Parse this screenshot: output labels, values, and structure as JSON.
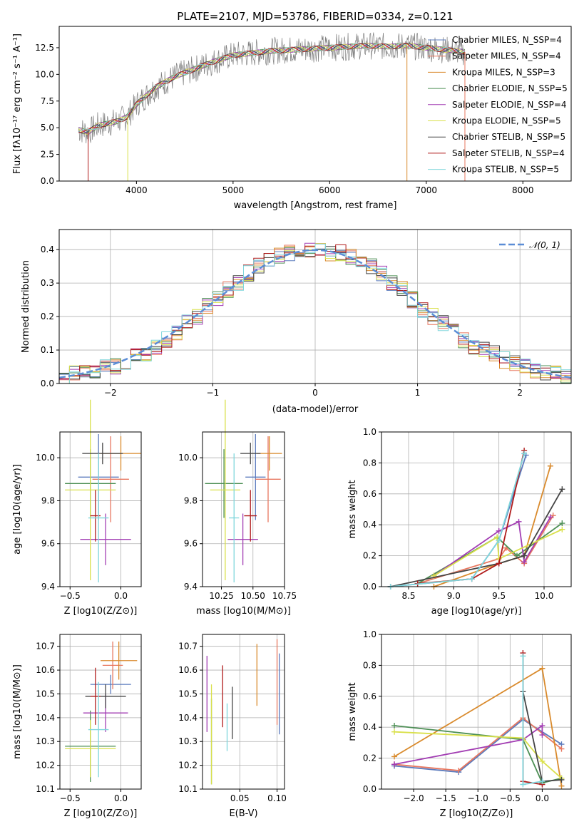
{
  "chart_data": [
    {
      "id": "spectrum",
      "type": "line",
      "title": "PLATE=2107, MJD=53786, FIBERID=0334, z=0.121",
      "xlabel": "wavelength [Angstrom, rest frame]",
      "ylabel": "Flux [fλ10⁻¹⁷ erg cm⁻² s⁻¹ A⁻¹]",
      "xlim": [
        3200,
        8500
      ],
      "ylim": [
        0,
        14.5
      ],
      "xticks": [
        4000,
        5000,
        6000,
        7000,
        8000
      ],
      "yticks": [
        0.0,
        2.5,
        5.0,
        7.5,
        10.0,
        12.5
      ],
      "legend_position": "right",
      "grid": false,
      "data": {
        "x": [
          3400,
          3500,
          3600,
          3700,
          3800,
          3900,
          4000,
          4200,
          4400,
          4600,
          4800,
          5000,
          5200,
          5400,
          5600,
          5800,
          6000,
          6200,
          6400,
          6600,
          6800,
          7000,
          7200,
          7400
        ],
        "y": [
          4.8,
          4.6,
          5.2,
          5.4,
          5.6,
          6.0,
          7.2,
          8.8,
          9.8,
          10.5,
          11.2,
          11.8,
          12.0,
          12.2,
          12.3,
          12.4,
          12.5,
          12.6,
          12.7,
          12.6,
          12.7,
          12.5,
          12.3,
          12.1
        ]
      },
      "series": [
        {
          "name": "Chabrier MILES, N_SSP=4",
          "color": "#5b7bbd"
        },
        {
          "name": "Salpeter MILES, N_SSP=4",
          "color": "#e8775f"
        },
        {
          "name": "Kroupa MILES, N_SSP=3",
          "color": "#d98a2c"
        },
        {
          "name": "Chabrier ELODIE, N_SSP=5",
          "color": "#4d8f55"
        },
        {
          "name": "Salpeter ELODIE, N_SSP=4",
          "color": "#a23db3"
        },
        {
          "name": "Kroupa ELODIE, N_SSP=5",
          "color": "#d9e04a"
        },
        {
          "name": "Chabrier STELIB, N_SSP=5",
          "color": "#444444"
        },
        {
          "name": "Salpeter STELIB, N_SSP=4",
          "color": "#b01c1c"
        },
        {
          "name": "Kroupa STELIB, N_SSP=5",
          "color": "#7fd6dc"
        }
      ]
    },
    {
      "id": "residuals",
      "type": "bar",
      "xlabel": "(data-model)/error",
      "ylabel": "Normed distribution",
      "xlim": [
        -2.5,
        2.5
      ],
      "ylim": [
        0,
        0.46
      ],
      "xticks": [
        -2,
        -1,
        0,
        1,
        2
      ],
      "yticks": [
        0.0,
        0.1,
        0.2,
        0.3,
        0.4
      ],
      "grid": true,
      "legend": "𝒩(0, 1)",
      "legend_position": "top-right",
      "bin_edges": [
        -2.5,
        -2.4,
        -2.3,
        -2.2,
        -2.1,
        -2.0,
        -1.9,
        -1.8,
        -1.7,
        -1.6,
        -1.5,
        -1.4,
        -1.3,
        -1.2,
        -1.1,
        -1.0,
        -0.9,
        -0.8,
        -0.7,
        -0.6,
        -0.5,
        -0.4,
        -0.3,
        -0.2,
        -0.1,
        0.0,
        0.1,
        0.2,
        0.3,
        0.4,
        0.5,
        0.6,
        0.7,
        0.8,
        0.9,
        1.0,
        1.1,
        1.2,
        1.3,
        1.4,
        1.5,
        1.6,
        1.7,
        1.8,
        1.9,
        2.0,
        2.1,
        2.2,
        2.3,
        2.4,
        2.5
      ],
      "values": [
        0.02,
        0.03,
        0.03,
        0.04,
        0.05,
        0.05,
        0.06,
        0.08,
        0.09,
        0.11,
        0.13,
        0.15,
        0.18,
        0.2,
        0.23,
        0.25,
        0.28,
        0.3,
        0.33,
        0.35,
        0.37,
        0.38,
        0.39,
        0.4,
        0.4,
        0.4,
        0.39,
        0.39,
        0.38,
        0.36,
        0.35,
        0.33,
        0.3,
        0.28,
        0.25,
        0.22,
        0.2,
        0.18,
        0.16,
        0.13,
        0.11,
        0.1,
        0.09,
        0.07,
        0.06,
        0.05,
        0.04,
        0.03,
        0.03,
        0.02
      ],
      "series_colors": [
        "#5b7bbd",
        "#e8775f",
        "#d98a2c",
        "#4d8f55",
        "#a23db3",
        "#d9e04a",
        "#444444",
        "#b01c1c",
        "#7fd6dc"
      ]
    },
    {
      "id": "z-vs-age",
      "type": "scatter",
      "xlabel": "Z [log10(Z/Z⊙)]",
      "ylabel": "age [log10(age/yr)]",
      "xlim": [
        -0.6,
        0.2
      ],
      "ylim": [
        9.4,
        10.12
      ],
      "xticks": [
        -0.5,
        0.0
      ],
      "yticks": [
        9.4,
        9.6,
        9.8,
        10.0
      ],
      "points": [
        {
          "x": -0.22,
          "y": 9.91,
          "xerr": 0.2,
          "yerr": 0.2,
          "color": "#5b7bbd"
        },
        {
          "x": -0.1,
          "y": 9.9,
          "xerr": 0.18,
          "yerr": 0.2,
          "color": "#e8775f"
        },
        {
          "x": 0.0,
          "y": 10.02,
          "xerr": 0.2,
          "yerr": 0.08,
          "color": "#d98a2c"
        },
        {
          "x": -0.3,
          "y": 9.88,
          "xerr": 0.25,
          "yerr": 0.16,
          "color": "#4d8f55"
        },
        {
          "x": -0.15,
          "y": 9.62,
          "xerr": 0.25,
          "yerr": 0.12,
          "color": "#a23db3"
        },
        {
          "x": -0.3,
          "y": 9.85,
          "xerr": 0.25,
          "yerr": 0.42,
          "color": "#d9e04a"
        },
        {
          "x": -0.18,
          "y": 10.02,
          "xerr": 0.2,
          "yerr": 0.05,
          "color": "#444444"
        },
        {
          "x": -0.25,
          "y": 9.73,
          "xerr": 0.05,
          "yerr": 0.12,
          "color": "#b01c1c"
        },
        {
          "x": -0.22,
          "y": 9.72,
          "xerr": 0.1,
          "yerr": 0.3,
          "color": "#7fd6dc"
        }
      ]
    },
    {
      "id": "mass-vs-age",
      "type": "scatter",
      "xlabel": "mass [log10(M/M⊙)]",
      "xlim": [
        10.1,
        10.75
      ],
      "ylim": [
        9.4,
        10.12
      ],
      "xticks": [
        10.25,
        10.5,
        10.75
      ],
      "yticks": [
        9.4,
        9.6,
        9.8,
        10.0
      ],
      "points": [
        {
          "x": 10.52,
          "y": 9.91,
          "xerr": 0.08,
          "yerr": 0.2,
          "color": "#5b7bbd"
        },
        {
          "x": 10.62,
          "y": 9.9,
          "xerr": 0.1,
          "yerr": 0.2,
          "color": "#e8775f"
        },
        {
          "x": 10.63,
          "y": 10.02,
          "xerr": 0.1,
          "yerr": 0.08,
          "color": "#d98a2c"
        },
        {
          "x": 10.27,
          "y": 9.88,
          "xerr": 0.15,
          "yerr": 0.16,
          "color": "#4d8f55"
        },
        {
          "x": 10.42,
          "y": 9.62,
          "xerr": 0.12,
          "yerr": 0.12,
          "color": "#a23db3"
        },
        {
          "x": 10.28,
          "y": 9.85,
          "xerr": 0.12,
          "yerr": 0.42,
          "color": "#d9e04a"
        },
        {
          "x": 10.48,
          "y": 10.02,
          "xerr": 0.08,
          "yerr": 0.05,
          "color": "#444444"
        },
        {
          "x": 10.48,
          "y": 9.73,
          "xerr": 0.05,
          "yerr": 0.12,
          "color": "#b01c1c"
        },
        {
          "x": 10.35,
          "y": 9.72,
          "xerr": 0.04,
          "yerr": 0.3,
          "color": "#7fd6dc"
        }
      ]
    },
    {
      "id": "age-vs-weight",
      "type": "line",
      "xlabel": "age [log10(age/yr)]",
      "ylabel": "mass weight",
      "xlim": [
        8.2,
        10.3
      ],
      "ylim": [
        0,
        1.0
      ],
      "xticks": [
        8.5,
        9.0,
        9.5,
        10.0
      ],
      "yticks": [
        0.0,
        0.2,
        0.4,
        0.6,
        0.8,
        1.0
      ],
      "grid": true,
      "series": [
        {
          "name": "Chabrier MILES",
          "color": "#5b7bbd",
          "x": [
            8.3,
            9.2,
            9.5,
            9.8
          ],
          "y": [
            0.0,
            0.05,
            0.3,
            0.85
          ]
        },
        {
          "name": "Salpeter MILES",
          "color": "#e8775f",
          "x": [
            8.6,
            9.5,
            9.58,
            9.78,
            10.1
          ],
          "y": [
            0.02,
            0.18,
            0.25,
            0.15,
            0.46
          ]
        },
        {
          "name": "Kroupa MILES",
          "color": "#d98a2c",
          "x": [
            8.78,
            9.5,
            9.78,
            10.07
          ],
          "y": [
            0.0,
            0.15,
            0.2,
            0.78
          ]
        },
        {
          "name": "Chabrier ELODIE",
          "color": "#4d8f55",
          "x": [
            8.6,
            9.48,
            9.7,
            10.2
          ],
          "y": [
            0.02,
            0.32,
            0.2,
            0.41
          ]
        },
        {
          "name": "Salpeter ELODIE",
          "color": "#a23db3",
          "x": [
            8.78,
            9.5,
            9.72,
            9.78,
            10.07
          ],
          "y": [
            0.07,
            0.36,
            0.42,
            0.16,
            0.45
          ]
        },
        {
          "name": "Kroupa ELODIE",
          "color": "#d9e04a",
          "x": [
            8.78,
            9.48,
            9.5,
            10.2
          ],
          "y": [
            0.07,
            0.32,
            0.18,
            0.37
          ]
        },
        {
          "name": "Chabrier STELIB",
          "color": "#444444",
          "x": [
            8.3,
            9.5,
            9.78,
            10.2
          ],
          "y": [
            0.0,
            0.15,
            0.2,
            0.63
          ]
        },
        {
          "name": "Salpeter STELIB",
          "color": "#b01c1c",
          "x": [
            8.6,
            9.2,
            9.5,
            9.78
          ],
          "y": [
            0.02,
            0.05,
            0.15,
            0.88
          ]
        },
        {
          "name": "Kroupa STELIB",
          "color": "#7fd6dc",
          "x": [
            8.3,
            9.2,
            9.5,
            9.78
          ],
          "y": [
            0.0,
            0.05,
            0.3,
            0.86
          ]
        }
      ]
    },
    {
      "id": "z-vs-mass",
      "type": "scatter",
      "xlabel": "Z [log10(Z/Z⊙)]",
      "ylabel": "mass [log10(M/M⊙)]",
      "xlim": [
        -0.6,
        0.2
      ],
      "ylim": [
        10.1,
        10.75
      ],
      "xticks": [
        -0.5,
        0.0
      ],
      "yticks": [
        10.1,
        10.2,
        10.3,
        10.4,
        10.5,
        10.6,
        10.7
      ],
      "points": [
        {
          "x": -0.1,
          "y": 10.54,
          "xerr": 0.2,
          "yerr": 0.04,
          "color": "#5b7bbd"
        },
        {
          "x": -0.08,
          "y": 10.62,
          "xerr": 0.1,
          "yerr": 0.1,
          "color": "#e8775f"
        },
        {
          "x": -0.02,
          "y": 10.64,
          "xerr": 0.18,
          "yerr": 0.08,
          "color": "#d98a2c"
        },
        {
          "x": -0.3,
          "y": 10.28,
          "xerr": 0.25,
          "yerr": 0.15,
          "color": "#4d8f55"
        },
        {
          "x": -0.15,
          "y": 10.42,
          "xerr": 0.22,
          "yerr": 0.08,
          "color": "#a23db3"
        },
        {
          "x": -0.3,
          "y": 10.27,
          "xerr": 0.25,
          "yerr": 0.12,
          "color": "#d9e04a"
        },
        {
          "x": -0.15,
          "y": 10.49,
          "xerr": 0.2,
          "yerr": 0.05,
          "color": "#444444"
        },
        {
          "x": -0.25,
          "y": 10.49,
          "xerr": 0.05,
          "yerr": 0.12,
          "color": "#b01c1c"
        },
        {
          "x": -0.22,
          "y": 10.35,
          "xerr": 0.1,
          "yerr": 0.2,
          "color": "#7fd6dc"
        }
      ]
    },
    {
      "id": "ebv-vs-mass",
      "type": "scatter",
      "xlabel": "E(B-V)",
      "xlim": [
        0.0,
        0.11
      ],
      "ylim": [
        10.1,
        10.75
      ],
      "xticks": [
        0.05,
        0.1
      ],
      "yticks": [
        10.1,
        10.2,
        10.3,
        10.4,
        10.5,
        10.6,
        10.7
      ],
      "points": [
        {
          "x": 0.103,
          "y": 10.5,
          "yerr": 0.17,
          "color": "#5b7bbd"
        },
        {
          "x": 0.1,
          "y": 10.55,
          "yerr": 0.18,
          "color": "#e8775f"
        },
        {
          "x": 0.073,
          "y": 10.58,
          "yerr": 0.13,
          "color": "#d98a2c"
        },
        {
          "x": 0.012,
          "y": 10.3,
          "yerr": 0.18,
          "color": "#4d8f55"
        },
        {
          "x": 0.006,
          "y": 10.5,
          "yerr": 0.16,
          "color": "#a23db3"
        },
        {
          "x": 0.012,
          "y": 10.33,
          "yerr": 0.21,
          "color": "#d9e04a"
        },
        {
          "x": 0.04,
          "y": 10.42,
          "yerr": 0.11,
          "color": "#444444"
        },
        {
          "x": 0.027,
          "y": 10.49,
          "yerr": 0.13,
          "color": "#b01c1c"
        },
        {
          "x": 0.033,
          "y": 10.36,
          "yerr": 0.1,
          "color": "#7fd6dc"
        }
      ]
    },
    {
      "id": "z-vs-weight",
      "type": "line",
      "xlabel": "Z [log10(Z/Z⊙)]",
      "ylabel": "mass weight",
      "xlim": [
        -2.5,
        0.45
      ],
      "ylim": [
        0,
        1.0
      ],
      "xticks": [
        -2.0,
        -1.5,
        -1.0,
        -0.5,
        0.0
      ],
      "yticks": [
        0.0,
        0.2,
        0.4,
        0.6,
        0.8,
        1.0
      ],
      "grid": true,
      "series": [
        {
          "name": "Chabrier MILES",
          "color": "#5b7bbd",
          "x": [
            -2.3,
            -1.3,
            -0.3,
            0.3
          ],
          "y": [
            0.15,
            0.11,
            0.45,
            0.29
          ]
        },
        {
          "name": "Salpeter MILES",
          "color": "#e8775f",
          "x": [
            -2.3,
            -1.3,
            -0.3,
            0.3
          ],
          "y": [
            0.16,
            0.12,
            0.46,
            0.26
          ]
        },
        {
          "name": "Kroupa MILES",
          "color": "#d98a2c",
          "x": [
            -2.3,
            0.0,
            0.3
          ],
          "y": [
            0.21,
            0.78,
            0.02
          ]
        },
        {
          "name": "Chabrier ELODIE",
          "color": "#4d8f55",
          "x": [
            -2.3,
            -0.3,
            0.0,
            0.3
          ],
          "y": [
            0.41,
            0.32,
            0.04,
            0.07
          ]
        },
        {
          "name": "Salpeter ELODIE",
          "color": "#a23db3",
          "x": [
            -2.3,
            -0.3,
            0.0,
            0.0
          ],
          "y": [
            0.16,
            0.32,
            0.41,
            0.35
          ]
        },
        {
          "name": "Kroupa ELODIE",
          "color": "#d9e04a",
          "x": [
            -2.3,
            -0.3,
            0.0,
            0.3
          ],
          "y": [
            0.37,
            0.33,
            0.18,
            0.07
          ]
        },
        {
          "name": "Chabrier STELIB",
          "color": "#444444",
          "x": [
            -0.3,
            0.0,
            0.3
          ],
          "y": [
            0.63,
            0.05,
            0.06
          ]
        },
        {
          "name": "Salpeter STELIB",
          "color": "#b01c1c",
          "x": [
            -0.3,
            -0.3,
            0.0
          ],
          "y": [
            0.88,
            0.05,
            0.03
          ]
        },
        {
          "name": "Kroupa STELIB",
          "color": "#7fd6dc",
          "x": [
            -0.3,
            -0.3,
            0.0
          ],
          "y": [
            0.86,
            0.03,
            0.05
          ]
        }
      ]
    }
  ]
}
